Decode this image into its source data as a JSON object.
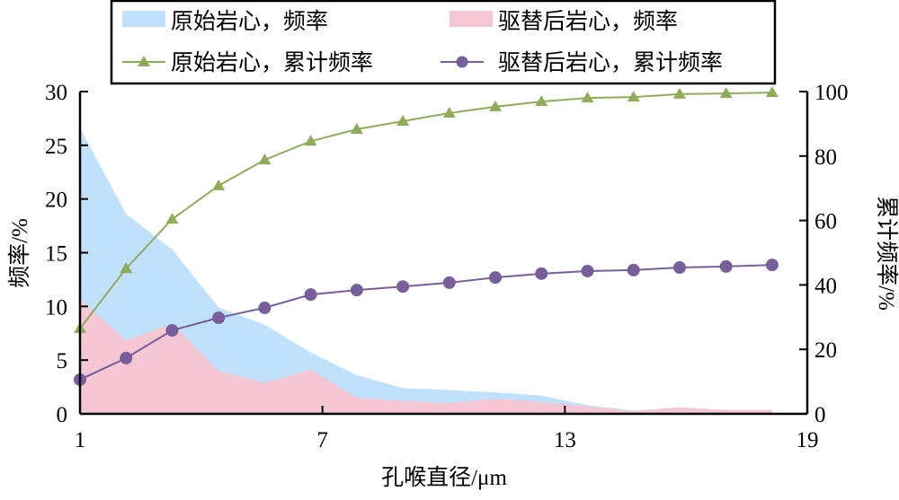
{
  "chart_data": {
    "type": "area+line",
    "xlabel": "孔喉直径/μm",
    "ylabel_left": "频率/%",
    "ylabel_right": "累计频率/%",
    "xlim": [
      1,
      19
    ],
    "ylim_left": [
      0,
      30
    ],
    "ylim_right": [
      0,
      100
    ],
    "xticks": [
      "1",
      "7",
      "13",
      "19"
    ],
    "yticks_left": [
      "0",
      "5",
      "10",
      "15",
      "20",
      "25",
      "30"
    ],
    "yticks_right": [
      "0",
      "20",
      "40",
      "60",
      "80",
      "100"
    ],
    "legend_placement": "top",
    "x": [
      1,
      2.14,
      3.28,
      4.43,
      5.57,
      6.71,
      7.85,
      8.99,
      10.14,
      11.28,
      12.42,
      13.56,
      14.7,
      15.84,
      16.99,
      18.13
    ],
    "series": [
      {
        "name": "原始岩心，频率",
        "kind": "area",
        "axis": "left",
        "color": "#bfe1fb",
        "values": [
          26.6,
          18.6,
          15.3,
          9.9,
          8.3,
          5.7,
          3.6,
          2.4,
          2.2,
          2.0,
          1.7,
          0.8,
          0.3,
          0.6,
          0.35,
          0.35
        ]
      },
      {
        "name": "驱替后岩心，频率",
        "kind": "area",
        "axis": "left",
        "color": "#f5c6d4",
        "values": [
          10.7,
          6.8,
          8.4,
          4.0,
          2.9,
          4.1,
          1.5,
          1.2,
          1.0,
          1.4,
          1.1,
          0.7,
          0.25,
          0.6,
          0.35,
          0.35
        ]
      },
      {
        "name": "原始岩心，累计频率",
        "kind": "line",
        "marker": "triangle",
        "axis": "right",
        "color": "#8fac5a",
        "values": [
          26.5,
          45.1,
          60.4,
          70.8,
          78.8,
          84.6,
          88.3,
          90.8,
          93.3,
          95.3,
          96.9,
          98.0,
          98.3,
          99.2,
          99.4,
          99.7
        ]
      },
      {
        "name": "驱替后岩心，累计频率",
        "kind": "line",
        "marker": "circle",
        "axis": "right",
        "color": "#765f9a",
        "values": [
          10.6,
          17.3,
          25.9,
          29.8,
          32.9,
          37.0,
          38.4,
          39.5,
          40.7,
          42.3,
          43.5,
          44.3,
          44.6,
          45.4,
          45.7,
          46.2
        ]
      }
    ]
  }
}
